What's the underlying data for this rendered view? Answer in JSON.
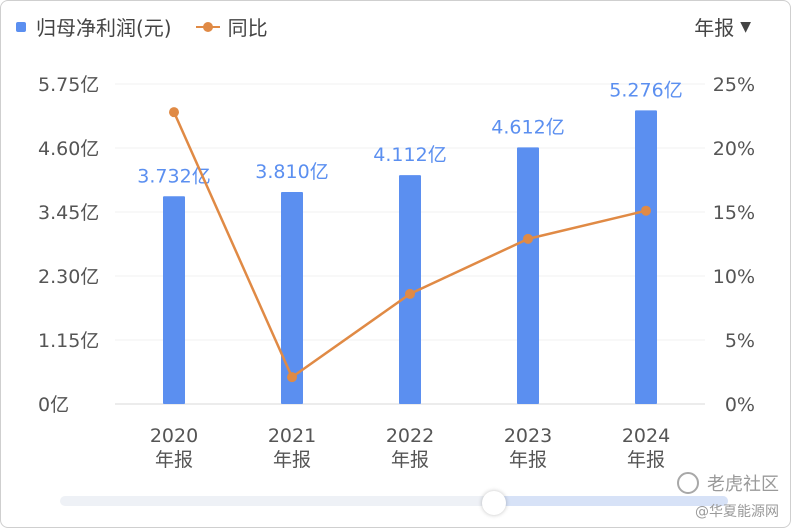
{
  "legend": {
    "bar_label": "归母净利润(元)",
    "line_label": "同比"
  },
  "period_selector": {
    "label": "年报",
    "caret": "▼"
  },
  "watermark": {
    "brand": "老虎社区",
    "sub": "@华夏能源网"
  },
  "colors": {
    "bar": "#5b8ff0",
    "line": "#e08a45",
    "bar_label": "#5b8ff0",
    "axis_text": "#555555"
  },
  "chart_data": {
    "type": "bar",
    "categories": [
      "2020\n年报",
      "2021\n年报",
      "2022\n年报",
      "2023\n年报",
      "2024\n年报"
    ],
    "series": [
      {
        "name": "归母净利润(元)",
        "type": "bar",
        "axis": "left",
        "values": [
          3.732,
          3.81,
          4.112,
          4.612,
          5.276
        ],
        "labels": [
          "3.732亿",
          "3.810亿",
          "4.112亿",
          "4.612亿",
          "5.276亿"
        ]
      },
      {
        "name": "同比",
        "type": "line",
        "axis": "right",
        "values": [
          22.8,
          2.1,
          8.6,
          12.9,
          15.1
        ]
      }
    ],
    "y_left": {
      "range": [
        0,
        5.75
      ],
      "ticks": [
        "0亿",
        "1.15亿",
        "2.30亿",
        "3.45亿",
        "4.60亿",
        "5.75亿"
      ]
    },
    "y_right": {
      "range": [
        0,
        25
      ],
      "ticks": [
        "0%",
        "5%",
        "10%",
        "15%",
        "20%",
        "25%"
      ]
    },
    "grid": true,
    "legend_position": "top-left"
  }
}
